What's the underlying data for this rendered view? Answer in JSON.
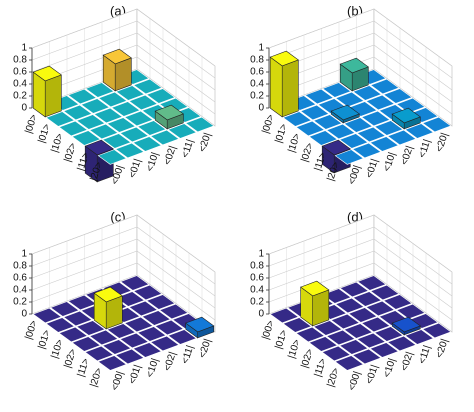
{
  "chart_data": [
    {
      "type": "bar3d",
      "title": "(a)",
      "row_labels": [
        "|00>",
        "|01>",
        "|10>",
        "|02>",
        "|11>",
        "|20>"
      ],
      "col_labels": [
        "<00|",
        "<01|",
        "<10|",
        "<02|",
        "<11|",
        "<20|"
      ],
      "values": [
        [
          0.6,
          0,
          0,
          0,
          0.45,
          0
        ],
        [
          0,
          0,
          0,
          0,
          0,
          0
        ],
        [
          0,
          0,
          0,
          0,
          0,
          0
        ],
        [
          0,
          0,
          0,
          0,
          0,
          0
        ],
        [
          -0.45,
          0,
          0,
          0,
          0.15,
          0
        ],
        [
          0,
          0,
          0,
          0,
          0,
          0
        ]
      ],
      "ylim": [
        0,
        1
      ],
      "yticks": [
        0,
        0.2,
        0.4,
        0.6,
        0.8,
        1
      ],
      "grid": true,
      "colormap": [
        "#352a87",
        "#0f5cdd",
        "#1481d6",
        "#06a4ca",
        "#2eb7a4",
        "#87bf77",
        "#d1bb59",
        "#fec832",
        "#f9fb0e"
      ]
    },
    {
      "type": "bar3d",
      "title": "(b)",
      "row_labels": [
        "|00>",
        "|01>",
        "|10>",
        "|02>",
        "|11>",
        "|20>"
      ],
      "col_labels": [
        "<00|",
        "<01|",
        "<10|",
        "<02|",
        "<11|",
        "<20|"
      ],
      "values": [
        [
          0.85,
          0,
          0,
          0,
          0.3,
          0
        ],
        [
          0,
          0,
          0,
          0,
          0,
          0
        ],
        [
          0,
          0,
          0.05,
          0,
          0,
          0
        ],
        [
          0,
          0,
          0,
          0,
          0,
          0
        ],
        [
          -0.3,
          0,
          0,
          0,
          0.1,
          0
        ],
        [
          0,
          0,
          0,
          0,
          0,
          0
        ]
      ],
      "ylim": [
        0,
        1
      ],
      "yticks": [
        0,
        0.2,
        0.4,
        0.6,
        0.8,
        1
      ],
      "grid": true,
      "colormap": [
        "#352a87",
        "#0f5cdd",
        "#1481d6",
        "#06a4ca",
        "#2eb7a4",
        "#87bf77",
        "#d1bb59",
        "#fec832",
        "#f9fb0e"
      ]
    },
    {
      "type": "bar3d",
      "title": "(c)",
      "row_labels": [
        "|00>",
        "|01>",
        "|10>",
        "|02>",
        "|11>",
        "|20>"
      ],
      "col_labels": [
        "<00|",
        "<01|",
        "<10|",
        "<02|",
        "<11|",
        "<20|"
      ],
      "values": [
        [
          0,
          0,
          0,
          0,
          0,
          0
        ],
        [
          0,
          0,
          0,
          0,
          0,
          0
        ],
        [
          0,
          0,
          0.45,
          0,
          0,
          0
        ],
        [
          0,
          0,
          0,
          0,
          0,
          0
        ],
        [
          0,
          0,
          0,
          0,
          0,
          0
        ],
        [
          0,
          0,
          0,
          0,
          0,
          0.1
        ]
      ],
      "ylim": [
        0,
        1
      ],
      "yticks": [
        0,
        0.2,
        0.4,
        0.6,
        0.8,
        1
      ],
      "grid": true,
      "colormap": [
        "#352a87",
        "#0f5cdd",
        "#1481d6",
        "#06a4ca",
        "#2eb7a4",
        "#87bf77",
        "#d1bb59",
        "#fec832",
        "#f9fb0e"
      ]
    },
    {
      "type": "bar3d",
      "title": "(d)",
      "row_labels": [
        "|00>",
        "|01>",
        "|10>",
        "|02>",
        "|11>",
        "|20>"
      ],
      "col_labels": [
        "<00|",
        "<01|",
        "<10|",
        "<02|",
        "<11|",
        "<20|"
      ],
      "values": [
        [
          0,
          0,
          0,
          0,
          0,
          0
        ],
        [
          0,
          0.5,
          0,
          0,
          0,
          0
        ],
        [
          0,
          0,
          0,
          0,
          0,
          0
        ],
        [
          0,
          0,
          0,
          0,
          0,
          0
        ],
        [
          0,
          0,
          0,
          0,
          0.05,
          0
        ],
        [
          0,
          0,
          0,
          0,
          0,
          0
        ]
      ],
      "ylim": [
        0,
        1
      ],
      "yticks": [
        0,
        0.2,
        0.4,
        0.6,
        0.8,
        1
      ],
      "grid": true,
      "colormap": [
        "#352a87",
        "#0f5cdd",
        "#1481d6",
        "#06a4ca",
        "#2eb7a4",
        "#87bf77",
        "#d1bb59",
        "#fec832",
        "#f9fb0e"
      ]
    }
  ]
}
